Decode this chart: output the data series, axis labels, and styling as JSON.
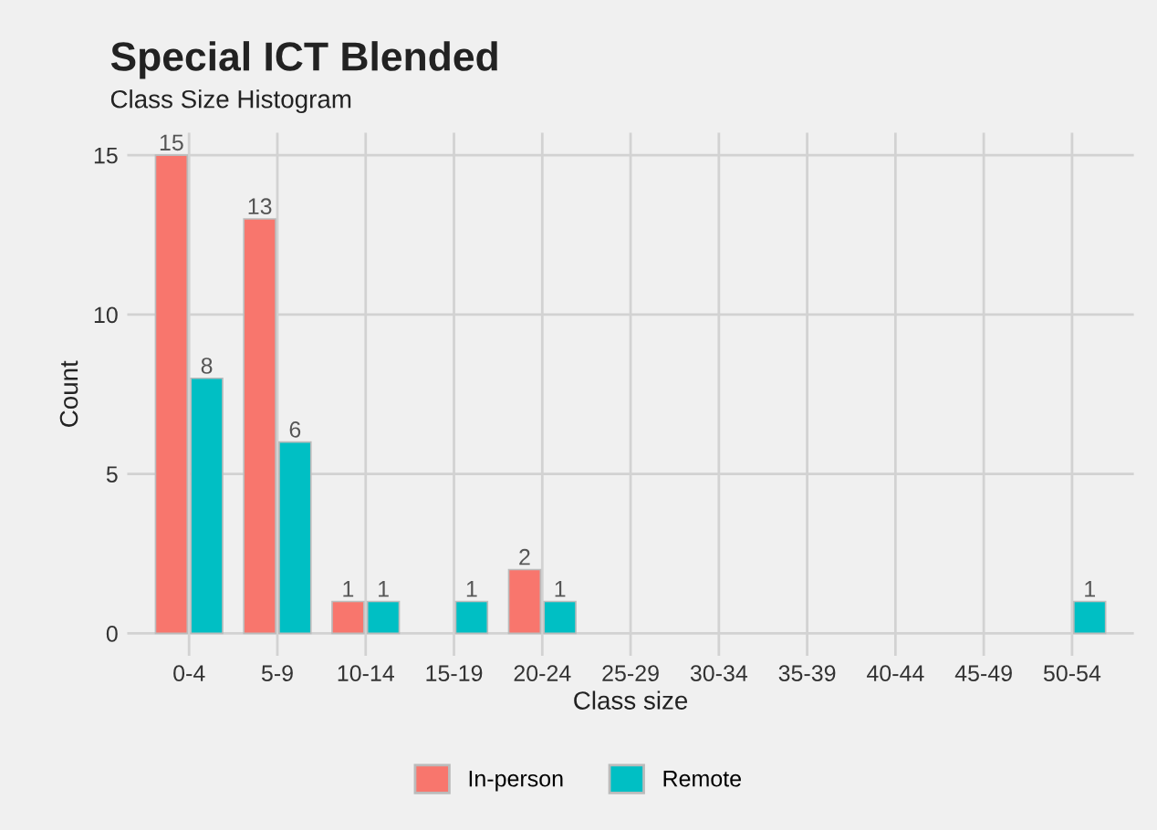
{
  "chart_data": {
    "type": "bar",
    "title": "Special ICT Blended",
    "subtitle": "Class Size Histogram",
    "xlabel": "Class size",
    "ylabel": "Count",
    "categories": [
      "0-4",
      "5-9",
      "10-14",
      "15-19",
      "20-24",
      "25-29",
      "30-34",
      "35-39",
      "40-44",
      "45-49",
      "50-54"
    ],
    "series": [
      {
        "name": "In-person",
        "color": "#f8766d",
        "values": [
          15,
          13,
          1,
          null,
          2,
          null,
          null,
          null,
          null,
          null,
          null
        ]
      },
      {
        "name": "Remote",
        "color": "#00bfc4",
        "values": [
          8,
          6,
          1,
          1,
          1,
          null,
          null,
          null,
          null,
          null,
          1
        ]
      }
    ],
    "ylim": [
      -0.7,
      15.7
    ],
    "yticks": [
      0,
      5,
      10,
      15
    ],
    "grid": true,
    "legend": "bottom",
    "data_labels": true
  }
}
